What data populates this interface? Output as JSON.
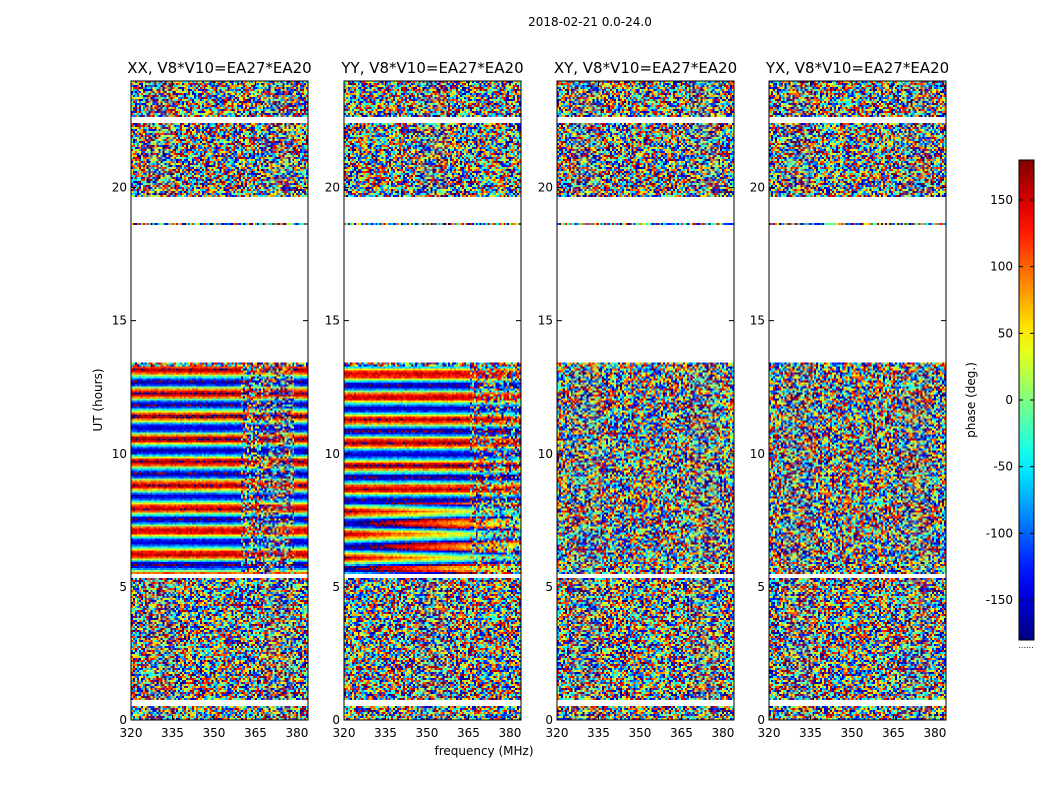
{
  "chart_data": {
    "type": "heatmap",
    "suptitle": "2018-02-21 0.0-24.0",
    "xlabel": "frequency (MHz)",
    "ylabel": "UT (hours)",
    "xlim": [
      320,
      384
    ],
    "ylim": [
      0,
      24
    ],
    "xticks": [
      "320",
      "335",
      "350",
      "365",
      "380"
    ],
    "yticks": [
      "0",
      "5",
      "10",
      "15",
      "20"
    ],
    "panels": [
      {
        "title": "XX, V8*V10=EA27*EA20",
        "mode": "parallel_xx"
      },
      {
        "title": "YY, V8*V10=EA27*EA20",
        "mode": "parallel_yy"
      },
      {
        "title": "XY, V8*V10=EA27*EA20",
        "mode": "cross"
      },
      {
        "title": "YX, V8*V10=EA27*EA20",
        "mode": "cross"
      }
    ],
    "blank_ut_ranges": [
      [
        18.7,
        19.65
      ],
      [
        13.4,
        18.6
      ],
      [
        22.4,
        22.65
      ],
      [
        5.35,
        5.45
      ],
      [
        0.55,
        0.75
      ]
    ],
    "colorbar": {
      "label": "phase (deg.)",
      "range": [
        -180,
        180
      ],
      "ticks": [
        "-150",
        "-100",
        "-50",
        "0",
        "50",
        "100",
        "150"
      ],
      "tick_values": [
        -150,
        -100,
        -50,
        0,
        50,
        100,
        150
      ],
      "colormap": "jet",
      "footer": "......"
    }
  }
}
